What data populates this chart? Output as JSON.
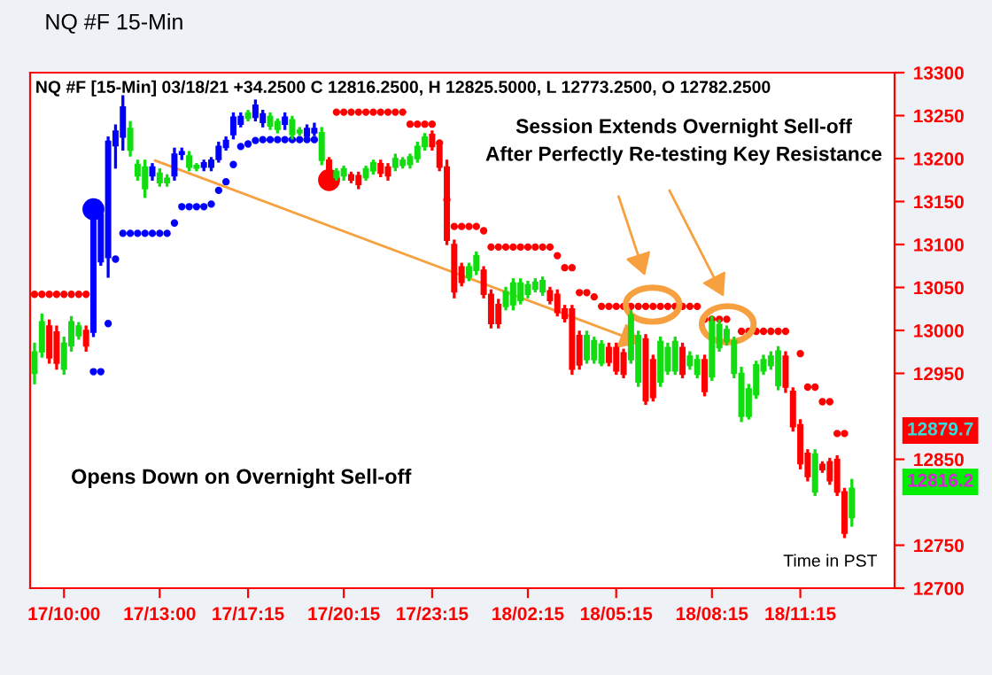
{
  "chart_data": {
    "type": "candlestick",
    "title": "NQ #F 15-Min",
    "subtitle": "NQ #F [15-Min] 03/18/21 +34.2500 C 12816.2500, H 12825.5000, L 12773.2500, O 12782.2500",
    "annotations": [
      "Session Extends Overnight Sell-off\nAfter Perfectly Re-testing Key Resistance",
      "Opens Down on Overnight Sell-off",
      "Time in PST",
      "12879.7",
      "12816.2"
    ],
    "categories": [
      null,
      null,
      null,
      null,
      "17/10:00",
      null,
      null,
      null,
      null,
      null,
      null,
      null,
      null,
      null,
      null,
      null,
      null,
      "17/13:00",
      null,
      null,
      null,
      null,
      null,
      null,
      null,
      null,
      null,
      null,
      null,
      "17/17:15",
      null,
      null,
      null,
      null,
      null,
      null,
      null,
      null,
      null,
      null,
      null,
      null,
      "17/20:15",
      null,
      null,
      null,
      null,
      null,
      null,
      null,
      null,
      null,
      null,
      null,
      "17/23:15",
      null,
      null,
      null,
      null,
      null,
      null,
      null,
      null,
      null,
      null,
      null,
      null,
      "18/02:15",
      null,
      null,
      null,
      null,
      null,
      null,
      null,
      null,
      null,
      null,
      null,
      "18/05:15",
      null,
      null,
      null,
      null,
      null,
      null,
      null,
      null,
      null,
      null,
      null,
      null,
      "18/08:15",
      null,
      null,
      null,
      null,
      null,
      null,
      null,
      null,
      null,
      null,
      null,
      "18/11:15",
      null,
      null,
      null,
      null,
      null,
      null,
      null
    ],
    "ohlc": [
      [
        12950,
        12984,
        12939,
        12975
      ],
      [
        12975,
        13018,
        12970,
        13010
      ],
      [
        13005,
        13011,
        12963,
        12968
      ],
      [
        12998,
        13004,
        12956,
        12962
      ],
      [
        12955,
        12991,
        12950,
        12985
      ],
      [
        12982,
        13015,
        12977,
        13010
      ],
      [
        12994,
        13008,
        12991,
        13005
      ],
      [
        13000,
        13004,
        12977,
        12982
      ],
      [
        12998,
        13149,
        12994,
        13135
      ],
      [
        13080,
        13142,
        13077,
        13135
      ],
      [
        13085,
        13224,
        13063,
        13220
      ],
      [
        13215,
        13238,
        13190,
        13232
      ],
      [
        13225,
        13272,
        13211,
        13260
      ],
      [
        13210,
        13242,
        13204,
        13235
      ],
      [
        13180,
        13197,
        13176,
        13193
      ],
      [
        13165,
        13197,
        13156,
        13190
      ],
      [
        13180,
        13193,
        13176,
        13190
      ],
      [
        13172,
        13187,
        13169,
        13183
      ],
      [
        13172,
        13180,
        13169,
        13177
      ],
      [
        13180,
        13211,
        13176,
        13205
      ],
      [
        13205,
        13211,
        13200,
        13208
      ],
      [
        13190,
        13207,
        13187,
        13203
      ],
      [
        13189,
        13193,
        13187,
        13192
      ],
      [
        13190,
        13197,
        13187,
        13195
      ],
      [
        13190,
        13200,
        13187,
        13198
      ],
      [
        13199,
        13218,
        13197,
        13214
      ],
      [
        13213,
        13224,
        13211,
        13221
      ],
      [
        13228,
        13252,
        13224,
        13248
      ],
      [
        13240,
        13252,
        13238,
        13249
      ],
      [
        13247,
        13255,
        13245,
        13253
      ],
      [
        13248,
        13267,
        13245,
        13262
      ],
      [
        13242,
        13255,
        13238,
        13252
      ],
      [
        13238,
        13252,
        13235,
        13249
      ],
      [
        13234,
        13245,
        13231,
        13243
      ],
      [
        13240,
        13252,
        13235,
        13248
      ],
      [
        13228,
        13248,
        13224,
        13245
      ],
      [
        13230,
        13235,
        13228,
        13233
      ],
      [
        13226,
        13238,
        13224,
        13235
      ],
      [
        13230,
        13240,
        13228,
        13235
      ],
      [
        13198,
        13235,
        13194,
        13230
      ],
      [
        13198,
        13200,
        13169,
        13172
      ],
      [
        13178,
        13187,
        13176,
        13185
      ],
      [
        13180,
        13190,
        13176,
        13188
      ],
      [
        13181,
        13183,
        13173,
        13175
      ],
      [
        13180,
        13183,
        13166,
        13170
      ],
      [
        13178,
        13190,
        13176,
        13188
      ],
      [
        13186,
        13197,
        13183,
        13195
      ],
      [
        13194,
        13197,
        13180,
        13183
      ],
      [
        13190,
        13193,
        13176,
        13180
      ],
      [
        13190,
        13204,
        13187,
        13200
      ],
      [
        13192,
        13200,
        13190,
        13198
      ],
      [
        13193,
        13204,
        13190,
        13202
      ],
      [
        13200,
        13218,
        13197,
        13214
      ],
      [
        13214,
        13228,
        13211,
        13225
      ],
      [
        13228,
        13231,
        13211,
        13214
      ],
      [
        13214,
        13218,
        13187,
        13190
      ],
      [
        13190,
        13197,
        13101,
        13105
      ],
      [
        13100,
        13104,
        13039,
        13045
      ],
      [
        13074,
        13077,
        13053,
        13056
      ],
      [
        13062,
        13077,
        13059,
        13074
      ],
      [
        13070,
        13090,
        13066,
        13087
      ],
      [
        13070,
        13073,
        13039,
        13042
      ],
      [
        13042,
        13046,
        13004,
        13008
      ],
      [
        13030,
        13035,
        13004,
        13008
      ],
      [
        13028,
        13049,
        13025,
        13045
      ],
      [
        13030,
        13059,
        13025,
        13055
      ],
      [
        13035,
        13059,
        13032,
        13055
      ],
      [
        13042,
        13056,
        13039,
        13053
      ],
      [
        13048,
        13059,
        13046,
        13056
      ],
      [
        13045,
        13061,
        13042,
        13058
      ],
      [
        13046,
        13049,
        13032,
        13035
      ],
      [
        13042,
        13046,
        13018,
        13021
      ],
      [
        13025,
        13028,
        13011,
        13014
      ],
      [
        13025,
        13028,
        12950,
        12955
      ],
      [
        12994,
        12998,
        12956,
        12960
      ],
      [
        12966,
        12998,
        12963,
        12994
      ],
      [
        12966,
        12991,
        12963,
        12988
      ],
      [
        12962,
        12987,
        12960,
        12984
      ],
      [
        12980,
        12984,
        12960,
        12963
      ],
      [
        12980,
        12984,
        12950,
        12953
      ],
      [
        12974,
        12977,
        12946,
        12949
      ],
      [
        12966,
        13022,
        12963,
        13018
      ],
      [
        12940,
        12998,
        12936,
        12994
      ],
      [
        12990,
        12994,
        12915,
        12918
      ],
      [
        12966,
        12970,
        12919,
        12922
      ],
      [
        12940,
        12991,
        12936,
        12987
      ],
      [
        12953,
        12984,
        12950,
        12980
      ],
      [
        12953,
        12991,
        12950,
        12987
      ],
      [
        12980,
        12984,
        12946,
        12949
      ],
      [
        12959,
        12974,
        12956,
        12970
      ],
      [
        12949,
        12970,
        12946,
        12966
      ],
      [
        12966,
        12970,
        12925,
        12929
      ],
      [
        12946,
        13015,
        12943,
        13010
      ],
      [
        12980,
        13011,
        12977,
        13007
      ],
      [
        12987,
        13004,
        12984,
        13001
      ],
      [
        12950,
        12991,
        12946,
        12988
      ],
      [
        12900,
        12956,
        12895,
        12950
      ],
      [
        12900,
        12936,
        12898,
        12932
      ],
      [
        12925,
        12963,
        12922,
        12960
      ],
      [
        12953,
        12970,
        12950,
        12966
      ],
      [
        12959,
        12974,
        12956,
        12970
      ],
      [
        12936,
        12980,
        12932,
        12976
      ],
      [
        12970,
        12974,
        12929,
        12934
      ],
      [
        12929,
        12932,
        12884,
        12888
      ],
      [
        12890,
        12895,
        12840,
        12845
      ],
      [
        12857,
        12860,
        12826,
        12830
      ],
      [
        12812,
        12860,
        12809,
        12856
      ],
      [
        12844,
        12846,
        12836,
        12838
      ],
      [
        12847,
        12850,
        12822,
        12825
      ],
      [
        12850,
        12853,
        12809,
        12812
      ],
      [
        12812,
        12815,
        12760,
        12764
      ],
      [
        12782.25,
        12825.5,
        12773.25,
        12816.25
      ]
    ],
    "colors": [
      "#11dd11",
      "#11dd11",
      "#ff0000",
      "#ff0000",
      "#11dd11",
      "#11dd11",
      "#11dd11",
      "#ff0000",
      "#0000ff",
      "#0000ff",
      "#0000ff",
      "#0000ff",
      "#0000ff",
      "#11dd11",
      "#11dd11",
      "#11dd11",
      "#0000ff",
      "#11dd11",
      "#11dd11",
      "#0000ff",
      "#0000ff",
      "#11dd11",
      "#11dd11",
      "#0000ff",
      "#0000ff",
      "#0000ff",
      "#0000ff",
      "#0000ff",
      "#0000ff",
      "#11dd11",
      "#0000ff",
      "#0000ff",
      "#11dd11",
      "#11dd11",
      "#0000ff",
      "#11dd11",
      "#11dd11",
      "#0000ff",
      "#0000ff",
      "#11dd11",
      "#ff0000",
      "#11dd11",
      "#11dd11",
      "#ff0000",
      "#ff0000",
      "#11dd11",
      "#11dd11",
      "#ff0000",
      "#ff0000",
      "#11dd11",
      "#11dd11",
      "#11dd11",
      "#11dd11",
      "#11dd11",
      "#ff0000",
      "#ff0000",
      "#ff0000",
      "#ff0000",
      "#ff0000",
      "#11dd11",
      "#11dd11",
      "#ff0000",
      "#ff0000",
      "#ff0000",
      "#11dd11",
      "#11dd11",
      "#11dd11",
      "#11dd11",
      "#11dd11",
      "#11dd11",
      "#ff0000",
      "#ff0000",
      "#ff0000",
      "#ff0000",
      "#ff0000",
      "#11dd11",
      "#11dd11",
      "#11dd11",
      "#ff0000",
      "#ff0000",
      "#ff0000",
      "#11dd11",
      "#11dd11",
      "#ff0000",
      "#ff0000",
      "#11dd11",
      "#11dd11",
      "#11dd11",
      "#ff0000",
      "#11dd11",
      "#11dd11",
      "#ff0000",
      "#11dd11",
      "#11dd11",
      "#11dd11",
      "#11dd11",
      "#11dd11",
      "#11dd11",
      "#11dd11",
      "#11dd11",
      "#11dd11",
      "#11dd11",
      "#ff0000",
      "#ff0000",
      "#ff0000",
      "#ff0000",
      "#11dd11",
      "#ff0000",
      "#ff0000",
      "#ff0000",
      "#ff0000",
      "#11dd11"
    ],
    "series": [
      {
        "type": "scatter",
        "color": "#ff0000",
        "values": [
          13042,
          13042,
          13042,
          13042,
          13042,
          13042,
          13042,
          13042,
          null,
          null,
          null,
          null,
          null,
          null,
          null,
          null,
          null,
          null,
          null,
          null,
          null,
          null,
          null,
          null,
          null,
          null,
          null,
          null,
          null,
          null,
          null,
          null,
          null,
          null,
          null,
          null,
          null,
          null,
          null,
          null,
          null,
          13254,
          13254,
          13254,
          13254,
          13254,
          13254,
          13254,
          13254,
          13254,
          13254,
          13240,
          13240,
          13240,
          13240,
          13218,
          13152,
          13121,
          13121,
          13121,
          13121,
          13116,
          13097,
          13097,
          13097,
          13097,
          13097,
          13097,
          13097,
          13097,
          13097,
          13087,
          13073,
          13073,
          13044,
          13044,
          13039,
          13028,
          13028,
          13028,
          13028,
          13028,
          13028,
          13028,
          13028,
          13028,
          13028,
          13028,
          13028,
          13028,
          13028,
          13013,
          13013,
          13013,
          13013,
          null,
          12999,
          12999,
          12999,
          12999,
          12999,
          12999,
          12999,
          null,
          12973,
          12934,
          12934,
          12917,
          12917,
          12880,
          12880,
          null
        ]
      },
      {
        "type": "scatter",
        "color": "#0000ff",
        "values": [
          null,
          null,
          null,
          null,
          null,
          null,
          null,
          null,
          12952,
          12952,
          13008,
          13083,
          13113,
          13113,
          13113,
          13113,
          13113,
          13113,
          13113,
          13125,
          13144,
          13144,
          13144,
          13144,
          13147,
          13163,
          13173,
          13193,
          13214,
          13217,
          13221,
          13222,
          13222,
          13222,
          13222,
          13222,
          13222,
          13222,
          13222,
          null,
          null,
          null,
          null,
          null,
          null,
          null,
          null,
          null,
          null,
          null,
          null,
          null,
          null,
          null,
          null,
          null,
          null,
          null,
          null,
          null,
          null,
          null,
          null,
          null,
          null,
          null,
          null,
          null,
          null,
          null,
          null,
          null,
          null,
          null,
          null,
          null,
          null,
          null,
          null,
          null,
          null,
          null,
          null,
          null,
          null,
          null,
          null,
          null,
          null,
          null,
          null,
          null,
          null,
          null,
          null,
          null,
          null,
          null,
          null,
          null,
          null,
          null,
          null,
          null,
          null,
          null,
          null,
          null,
          null,
          null,
          null,
          null
        ]
      },
      {
        "type": "bubble",
        "colors": [
          null,
          null,
          null,
          null,
          null,
          null,
          null,
          null,
          "#0000ff",
          null,
          null,
          null,
          null,
          null,
          null,
          null,
          null,
          null,
          null,
          null,
          null,
          null,
          null,
          null,
          null,
          null,
          null,
          null,
          null,
          null,
          null,
          null,
          null,
          null,
          null,
          null,
          null,
          null,
          null,
          null,
          "#ff0000",
          null,
          null,
          null,
          null,
          null,
          null,
          null,
          null,
          null,
          null,
          null,
          null,
          null,
          null,
          null,
          null,
          null,
          null,
          null,
          null,
          null,
          null,
          null,
          null,
          null,
          null,
          null,
          null,
          null,
          null,
          null,
          null,
          null,
          null,
          null,
          null,
          null,
          null,
          null,
          null,
          null,
          null,
          null,
          null,
          null,
          null,
          null,
          null,
          null,
          null,
          null,
          null,
          null,
          null,
          null,
          null,
          null,
          null,
          null,
          null,
          null,
          null,
          null,
          null,
          null,
          null,
          null,
          null,
          null,
          null,
          null
        ],
        "values": [
          null,
          null,
          null,
          null,
          null,
          null,
          null,
          null,
          13141,
          null,
          null,
          null,
          null,
          null,
          null,
          null,
          null,
          null,
          null,
          null,
          null,
          null,
          null,
          null,
          null,
          null,
          null,
          null,
          null,
          null,
          null,
          null,
          null,
          null,
          null,
          null,
          null,
          null,
          null,
          null,
          13175,
          null,
          null,
          null,
          null,
          null,
          null,
          null,
          null,
          null,
          null,
          null,
          null,
          null,
          null,
          null,
          null,
          null,
          null,
          null,
          null,
          null,
          null,
          null,
          null,
          null,
          null,
          null,
          null,
          null,
          null,
          null,
          null,
          null,
          null,
          null,
          null,
          null,
          null,
          null,
          null,
          null,
          null,
          null,
          null,
          null,
          null,
          null,
          null,
          null,
          null,
          null,
          null,
          null,
          null,
          null,
          null,
          null,
          null,
          null,
          null,
          null,
          null,
          null,
          null,
          null,
          null,
          null,
          null,
          null,
          null,
          null
        ]
      }
    ],
    "marker": "circle",
    "ylim": [
      12700,
      13300
    ],
    "yticks": [
      12700,
      12750,
      12850,
      12950,
      13000,
      13050,
      13100,
      13150,
      13200,
      13250,
      13300
    ]
  }
}
